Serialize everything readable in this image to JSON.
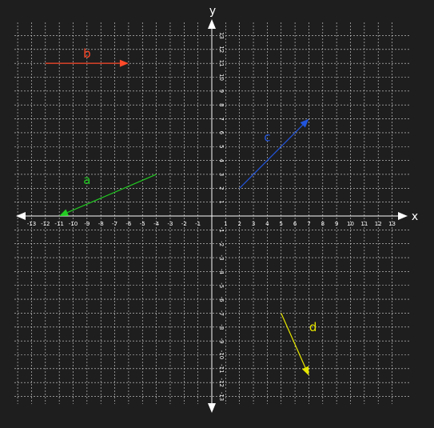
{
  "axes": {
    "x_label": "x",
    "y_label": "y",
    "x_range": [
      -13,
      13
    ],
    "y_range": [
      -13,
      13
    ],
    "tick_step": 1,
    "grid": true,
    "grid_color": "#d8d8d8",
    "axis_color": "#ffffff",
    "background": "#1e1e1e"
  },
  "vectors": [
    {
      "id": "a",
      "label": "a",
      "color": "#22cc22",
      "from": [
        -4,
        3
      ],
      "to": [
        -11,
        0
      ]
    },
    {
      "id": "b",
      "label": "b",
      "color": "#ff4a2a",
      "from": [
        -12,
        11
      ],
      "to": [
        -6,
        11
      ]
    },
    {
      "id": "c",
      "label": "c",
      "color": "#2255dd",
      "from": [
        2,
        2
      ],
      "to": [
        7,
        7
      ]
    },
    {
      "id": "d",
      "label": "d",
      "color": "#e6e600",
      "from": [
        5,
        -7
      ],
      "to": [
        7,
        -11.5
      ]
    }
  ]
}
